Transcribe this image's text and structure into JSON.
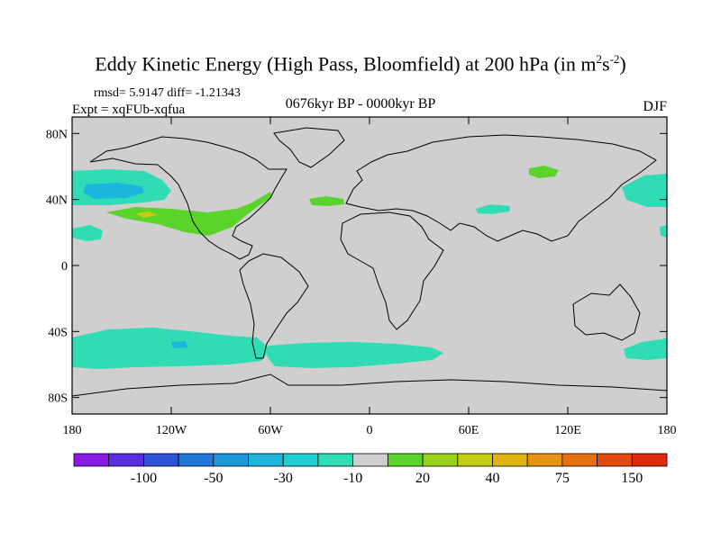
{
  "title": {
    "main": "Eddy Kinetic Energy (High Pass, Bloomfield) at 200 hPa (in m",
    "sup1": "2",
    "mid": "s",
    "sup2": "-2",
    "tail": ")"
  },
  "stats": "rmsd= 5.9147 diff= -1.21343",
  "expt": "Expt = xqFUb-xqfua",
  "period": "0676kyr BP - 0000kyr BP",
  "season": "DJF",
  "axes": {
    "lat_labels": [
      "80N",
      "40N",
      "0",
      "40S",
      "80S"
    ],
    "lon_labels": [
      "180",
      "120W",
      "60W",
      "0",
      "60E",
      "120E",
      "180"
    ]
  },
  "colorbar": {
    "colors": [
      "#8c1ae6",
      "#5a2de0",
      "#2f52d8",
      "#1e78d8",
      "#1c98da",
      "#1cb6dc",
      "#1ccfd0",
      "#2fdcb4",
      "#cfcfcf",
      "#5ad42a",
      "#98d21a",
      "#c4cc14",
      "#e0b410",
      "#e89410",
      "#e6700e",
      "#e44a0e",
      "#e02a0e"
    ],
    "labels": [
      "-100",
      "-50",
      "-30",
      "-10",
      "20",
      "40",
      "75",
      "150"
    ]
  },
  "colors": {
    "land_ocean": "#cfcfcf",
    "teal": "#2fdcb4",
    "green": "#5ad42a",
    "cyan": "#1cb6dc",
    "yellow": "#c4cc14",
    "blue": "#1e78d8"
  }
}
